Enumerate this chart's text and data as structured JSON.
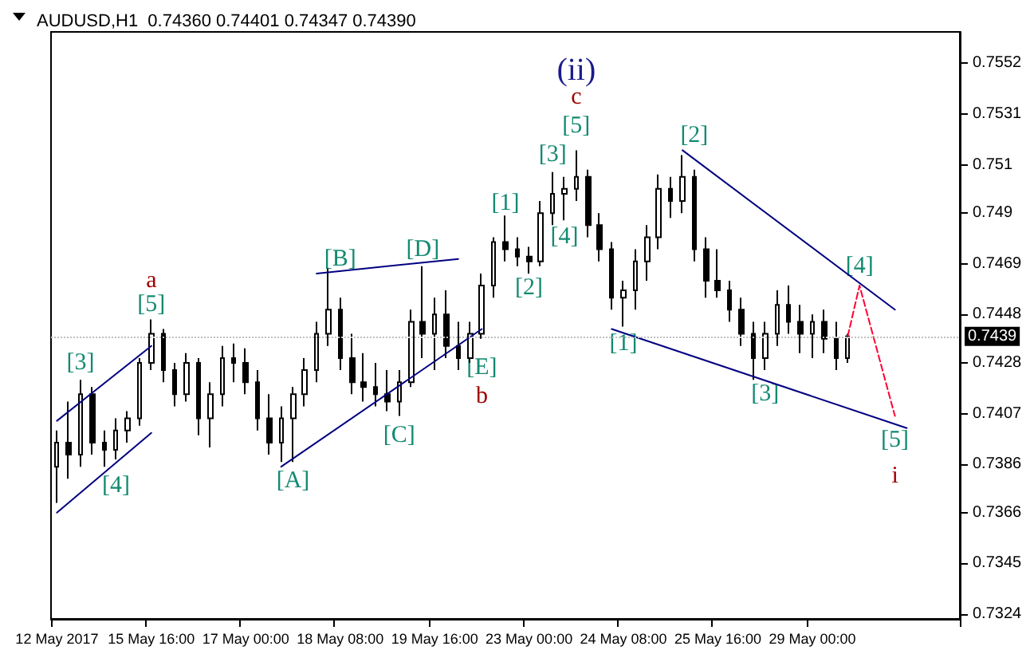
{
  "chart_data": {
    "type": "candlestick",
    "title": "AUDUSD,H1  0.74360 0.74401 0.74347 0.74390",
    "marker": "none",
    "categories": [
      "12 May 2017",
      null,
      null,
      null,
      null,
      null,
      null,
      null,
      "15 May 16:00",
      null,
      null,
      null,
      null,
      null,
      null,
      null,
      "17 May 00:00",
      null,
      null,
      null,
      null,
      null,
      null,
      null,
      "18 May 08:00",
      null,
      null,
      null,
      null,
      null,
      null,
      null,
      "19 May 16:00",
      null,
      null,
      null,
      null,
      null,
      null,
      null,
      "23 May 00:00",
      null,
      null,
      null,
      null,
      null,
      null,
      null,
      "24 May 08:00",
      null,
      null,
      null,
      null,
      null,
      null,
      null,
      "25 May 16:00",
      null,
      null,
      null,
      null,
      null,
      null,
      null,
      "29 May 00:00",
      null,
      null,
      null,
      null,
      null,
      null,
      null,
      null,
      null,
      null,
      null,
      null
    ],
    "ylim": [
      0.7322,
      0.7565
    ],
    "yticks": [
      0.7324,
      0.7345,
      0.7366,
      0.7386,
      0.7407,
      0.7428,
      0.7448,
      0.7469,
      0.749,
      0.751,
      0.7531,
      0.7552
    ],
    "series": [
      {
        "color": "#000000",
        "ohlc": [
          [
            0.7385,
            0.74,
            0.737,
            0.7395
          ],
          [
            0.7395,
            0.7412,
            0.738,
            0.739
          ],
          [
            0.739,
            0.7421,
            0.7385,
            0.7415
          ],
          [
            0.7415,
            0.7418,
            0.739,
            0.7395
          ],
          [
            0.7395,
            0.74,
            0.7385,
            0.7392
          ],
          [
            0.7392,
            0.7405,
            0.7388,
            0.74
          ],
          [
            0.74,
            0.7408,
            0.7395,
            0.7405
          ],
          [
            0.7405,
            0.743,
            0.7402,
            0.7428
          ],
          [
            0.7428,
            0.7446,
            0.7425,
            0.744
          ],
          [
            0.744,
            0.7442,
            0.742,
            0.7425
          ],
          [
            0.7425,
            0.7428,
            0.741,
            0.7415
          ],
          [
            0.7415,
            0.7432,
            0.7412,
            0.7428
          ],
          [
            0.7428,
            0.743,
            0.7398,
            0.7405
          ],
          [
            0.7405,
            0.742,
            0.7393,
            0.7415
          ],
          [
            0.7415,
            0.7435,
            0.741,
            0.743
          ],
          [
            0.743,
            0.7436,
            0.742,
            0.7428
          ],
          [
            0.7428,
            0.7434,
            0.7415,
            0.742
          ],
          [
            0.742,
            0.7425,
            0.74,
            0.7405
          ],
          [
            0.7405,
            0.7415,
            0.739,
            0.7395
          ],
          [
            0.7395,
            0.741,
            0.7387,
            0.7405
          ],
          [
            0.7405,
            0.7418,
            0.7387,
            0.7415
          ],
          [
            0.7415,
            0.743,
            0.741,
            0.7425
          ],
          [
            0.7425,
            0.7445,
            0.742,
            0.744
          ],
          [
            0.744,
            0.7467,
            0.7435,
            0.745
          ],
          [
            0.745,
            0.7455,
            0.7425,
            0.743
          ],
          [
            0.743,
            0.744,
            0.7415,
            0.742
          ],
          [
            0.742,
            0.7432,
            0.7412,
            0.7418
          ],
          [
            0.7418,
            0.7428,
            0.741,
            0.7415
          ],
          [
            0.7415,
            0.7425,
            0.7408,
            0.7412
          ],
          [
            0.7412,
            0.7425,
            0.7406,
            0.742
          ],
          [
            0.742,
            0.745,
            0.7418,
            0.7445
          ],
          [
            0.7445,
            0.7468,
            0.743,
            0.744
          ],
          [
            0.744,
            0.7455,
            0.7425,
            0.7448
          ],
          [
            0.7448,
            0.7458,
            0.743,
            0.7435
          ],
          [
            0.7435,
            0.7445,
            0.7425,
            0.743
          ],
          [
            0.743,
            0.7445,
            0.7428,
            0.744
          ],
          [
            0.744,
            0.7465,
            0.7438,
            0.746
          ],
          [
            0.746,
            0.748,
            0.7455,
            0.7478
          ],
          [
            0.7478,
            0.7489,
            0.747,
            0.7475
          ],
          [
            0.7475,
            0.748,
            0.7468,
            0.7472
          ],
          [
            0.7472,
            0.7476,
            0.7465,
            0.747
          ],
          [
            0.747,
            0.7495,
            0.7468,
            0.749
          ],
          [
            0.749,
            0.7507,
            0.7485,
            0.7498
          ],
          [
            0.7498,
            0.7505,
            0.7487,
            0.75
          ],
          [
            0.75,
            0.7516,
            0.7495,
            0.7505
          ],
          [
            0.7505,
            0.7508,
            0.748,
            0.7485
          ],
          [
            0.7485,
            0.749,
            0.747,
            0.7475
          ],
          [
            0.7475,
            0.7478,
            0.745,
            0.7455
          ],
          [
            0.7455,
            0.7462,
            0.7443,
            0.7458
          ],
          [
            0.7458,
            0.7475,
            0.745,
            0.747
          ],
          [
            0.747,
            0.7485,
            0.7462,
            0.748
          ],
          [
            0.748,
            0.7506,
            0.7475,
            0.75
          ],
          [
            0.75,
            0.7505,
            0.7488,
            0.7495
          ],
          [
            0.7495,
            0.7514,
            0.749,
            0.7505
          ],
          [
            0.7505,
            0.7508,
            0.747,
            0.7475
          ],
          [
            0.7475,
            0.748,
            0.7455,
            0.7462
          ],
          [
            0.7462,
            0.7475,
            0.7455,
            0.7458
          ],
          [
            0.7458,
            0.7462,
            0.7445,
            0.745
          ],
          [
            0.745,
            0.7455,
            0.7435,
            0.744
          ],
          [
            0.744,
            0.7445,
            0.7421,
            0.743
          ],
          [
            0.743,
            0.7445,
            0.7425,
            0.744
          ],
          [
            0.744,
            0.7458,
            0.7435,
            0.7452
          ],
          [
            0.7452,
            0.746,
            0.744,
            0.7445
          ],
          [
            0.7445,
            0.7452,
            0.7432,
            0.744
          ],
          [
            0.744,
            0.7448,
            0.743,
            0.7445
          ],
          [
            0.7445,
            0.745,
            0.7432,
            0.7438
          ],
          [
            0.7438,
            0.7445,
            0.7425,
            0.743
          ],
          [
            0.743,
            0.744,
            0.7428,
            0.7439
          ],
          null,
          null,
          null,
          null,
          null,
          null,
          null,
          null,
          null
        ]
      },
      {
        "type": "line",
        "color": "#ff0033",
        "line_style": "dashed",
        "values": [
          null,
          null,
          null,
          null,
          null,
          null,
          null,
          null,
          null,
          null,
          null,
          null,
          null,
          null,
          null,
          null,
          null,
          null,
          null,
          null,
          null,
          null,
          null,
          null,
          null,
          null,
          null,
          null,
          null,
          null,
          null,
          null,
          null,
          null,
          null,
          null,
          null,
          null,
          null,
          null,
          null,
          null,
          null,
          null,
          null,
          null,
          null,
          null,
          null,
          null,
          null,
          null,
          null,
          null,
          null,
          null,
          null,
          null,
          null,
          null,
          null,
          null,
          null,
          null,
          null,
          null,
          null,
          0.7439,
          0.746,
          null,
          null,
          0.7406,
          null,
          null,
          null,
          null,
          null
        ]
      },
      {
        "type": "line",
        "color": "#000080",
        "values": [
          0.7366,
          null,
          null,
          null,
          null,
          null,
          null,
          null,
          0.7399,
          null,
          null,
          null,
          null,
          null,
          null,
          null,
          null,
          null,
          null,
          null,
          null,
          null,
          null,
          null,
          null,
          null,
          null,
          null,
          null,
          null,
          null,
          null,
          null,
          null,
          null,
          null,
          null,
          null,
          null,
          null,
          null,
          null,
          null,
          null,
          null,
          null,
          null,
          null,
          null,
          null,
          null,
          null,
          null,
          null,
          null,
          null,
          null,
          null,
          null,
          null,
          null,
          null,
          null,
          null,
          null,
          null,
          null,
          null,
          null,
          null,
          null,
          null,
          null,
          null,
          null,
          null,
          null
        ]
      },
      {
        "type": "line",
        "color": "#000080",
        "values": [
          0.7404,
          null,
          null,
          null,
          null,
          null,
          null,
          null,
          0.7435,
          null,
          null,
          null,
          null,
          null,
          null,
          null,
          null,
          null,
          null,
          null,
          null,
          null,
          null,
          null,
          null,
          null,
          null,
          null,
          null,
          null,
          null,
          null,
          null,
          null,
          null,
          null,
          null,
          null,
          null,
          null,
          null,
          null,
          null,
          null,
          null,
          null,
          null,
          null,
          null,
          null,
          null,
          null,
          null,
          null,
          null,
          null,
          null,
          null,
          null,
          null,
          null,
          null,
          null,
          null,
          null,
          null,
          null,
          null,
          null,
          null,
          null,
          null,
          null,
          null,
          null,
          null,
          null
        ]
      },
      {
        "type": "line",
        "color": "#000080",
        "values": [
          null,
          null,
          null,
          null,
          null,
          null,
          null,
          null,
          null,
          null,
          null,
          null,
          null,
          null,
          null,
          null,
          null,
          null,
          null,
          null,
          null,
          null,
          0.7465,
          null,
          null,
          null,
          null,
          null,
          null,
          null,
          null,
          null,
          null,
          null,
          0.7471,
          null,
          null,
          null,
          null,
          null,
          null,
          null,
          null,
          null,
          null,
          null,
          null,
          null,
          null,
          null,
          null,
          null,
          null,
          null,
          null,
          null,
          null,
          null,
          null,
          null,
          null,
          null,
          null,
          null,
          null,
          null,
          null,
          null,
          null,
          null,
          null,
          null,
          null,
          null,
          null,
          null,
          null
        ]
      },
      {
        "type": "line",
        "color": "#000080",
        "values": [
          null,
          null,
          null,
          null,
          null,
          null,
          null,
          null,
          null,
          null,
          null,
          null,
          null,
          null,
          null,
          null,
          null,
          null,
          null,
          0.7385,
          null,
          null,
          null,
          null,
          null,
          null,
          null,
          null,
          null,
          null,
          null,
          null,
          null,
          null,
          null,
          null,
          0.7442,
          null,
          null,
          null,
          null,
          null,
          null,
          null,
          null,
          null,
          null,
          null,
          null,
          null,
          null,
          null,
          null,
          null,
          null,
          null,
          null,
          null,
          null,
          null,
          null,
          null,
          null,
          null,
          null,
          null,
          null,
          null,
          null,
          null,
          null,
          null,
          null,
          null,
          null,
          null,
          null
        ]
      },
      {
        "type": "line",
        "color": "#000080",
        "values": [
          null,
          null,
          null,
          null,
          null,
          null,
          null,
          null,
          null,
          null,
          null,
          null,
          null,
          null,
          null,
          null,
          null,
          null,
          null,
          null,
          null,
          null,
          null,
          null,
          null,
          null,
          null,
          null,
          null,
          null,
          null,
          null,
          null,
          null,
          null,
          null,
          null,
          null,
          null,
          null,
          null,
          null,
          null,
          null,
          null,
          null,
          null,
          null,
          null,
          null,
          null,
          null,
          null,
          0.7516,
          null,
          null,
          null,
          null,
          null,
          null,
          null,
          null,
          null,
          null,
          null,
          null,
          null,
          null,
          null,
          null,
          null,
          0.745,
          null,
          null,
          null,
          null,
          null
        ]
      },
      {
        "type": "line",
        "color": "#000080",
        "values": [
          null,
          null,
          null,
          null,
          null,
          null,
          null,
          null,
          null,
          null,
          null,
          null,
          null,
          null,
          null,
          null,
          null,
          null,
          null,
          null,
          null,
          null,
          null,
          null,
          null,
          null,
          null,
          null,
          null,
          null,
          null,
          null,
          null,
          null,
          null,
          null,
          null,
          null,
          null,
          null,
          null,
          null,
          null,
          null,
          null,
          null,
          null,
          0.7442,
          null,
          null,
          null,
          null,
          null,
          null,
          null,
          null,
          null,
          null,
          null,
          null,
          null,
          null,
          null,
          null,
          null,
          null,
          null,
          null,
          null,
          null,
          null,
          null,
          0.7401,
          null,
          null,
          null,
          null
        ]
      }
    ],
    "ref_lines": [
      {
        "axis": "y",
        "value": 0.7439,
        "label": "0.7439",
        "color": "#c0c0c0",
        "line_style": "dotted"
      }
    ],
    "annotations": [
      "[3]",
      "[4]",
      "[5]",
      "a",
      "[A]",
      "[B]",
      "[C]",
      "[D]",
      "[E]",
      "b",
      "[1]",
      "[2]",
      "[3]",
      "[4]",
      "[5]",
      "c",
      "(ii)",
      "[1]",
      "[2]",
      "[3]",
      "[4]",
      "[5]",
      "i"
    ]
  }
}
